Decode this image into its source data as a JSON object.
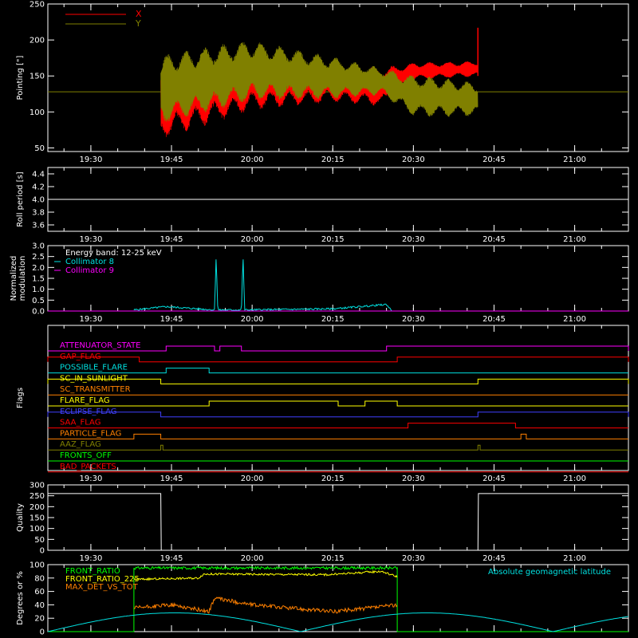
{
  "chart_data": [
    {
      "type": "line",
      "ylabel": "Pointing [\"]",
      "ylim": [
        45,
        250
      ],
      "yticks": [
        50,
        100,
        150,
        200,
        250
      ],
      "xlim": [
        "19:22",
        "21:10"
      ],
      "xticks": [
        "19:30",
        "19:45",
        "20:00",
        "20:15",
        "20:30",
        "20:45",
        "21:00"
      ],
      "legend": "top-left",
      "colors": {
        "X": "#ff0000",
        "Y": "#808000",
        "baseline": "#808000"
      },
      "baseline": 128,
      "series": [
        {
          "name": "X",
          "x": [
            "19:43",
            "19:45",
            "20:00",
            "20:15",
            "20:24",
            "20:30",
            "20:42"
          ],
          "upper": [
            160,
            175,
            190,
            170,
            160,
            168,
            170
          ],
          "lower": [
            65,
            70,
            105,
            115,
            110,
            145,
            150
          ],
          "spike": {
            "x": "20:42",
            "y": 217
          }
        },
        {
          "name": "Y",
          "x": [
            "19:43",
            "19:45",
            "20:00",
            "20:15",
            "20:24",
            "20:30",
            "20:42"
          ],
          "upper": [
            175,
            180,
            198,
            175,
            160,
            150,
            140
          ],
          "lower": [
            85,
            90,
            118,
            120,
            125,
            95,
            95
          ]
        }
      ]
    },
    {
      "type": "line",
      "ylabel": "Roll period [s]",
      "ylim": [
        3.5,
        4.5
      ],
      "yticks": [
        3.6,
        3.8,
        4.0,
        4.2,
        4.4
      ],
      "xticks": [
        "19:30",
        "19:45",
        "20:00",
        "20:15",
        "20:30",
        "20:45",
        "21:00"
      ],
      "series": [
        {
          "name": "",
          "x": [
            "19:22",
            "21:10"
          ],
          "y": [
            4.0,
            4.0
          ]
        }
      ]
    },
    {
      "type": "line",
      "ylabel": "Normalized modulation",
      "ylim": [
        0,
        3.0
      ],
      "yticks": [
        0.0,
        0.5,
        1.0,
        1.5,
        2.0,
        2.5,
        3.0
      ],
      "xticks": [
        "19:30",
        "19:45",
        "20:00",
        "20:15",
        "20:30",
        "20:45",
        "21:00"
      ],
      "legend_title": "Energy band: 12-25 keV",
      "series": [
        {
          "name": "Collimator 8",
          "color": "#00e0e0",
          "x": [
            "19:38",
            "19:44",
            "19:53",
            "19:53.3",
            "19:53.6",
            "19:58",
            "19:58.3",
            "19:58.6",
            "20:15",
            "20:25",
            "20:26"
          ],
          "y": [
            0.05,
            0.2,
            0.05,
            2.55,
            0.05,
            0.05,
            2.55,
            0.05,
            0.1,
            0.3,
            0.0
          ]
        },
        {
          "name": "Collimator 9",
          "color": "#ff00ff",
          "x": [
            "19:22",
            "21:10"
          ],
          "y": [
            0.0,
            0.0
          ]
        }
      ]
    },
    {
      "type": "step",
      "ylabel": "Flags",
      "xticks": [
        "19:30",
        "19:45",
        "20:00",
        "20:15",
        "20:30",
        "20:45",
        "21:00"
      ],
      "flags": [
        {
          "label": "ATTENUATOR_STATE",
          "color": "#ff00ff",
          "high": [
            [
              "19:44",
              "19:53"
            ],
            [
              "19:54",
              "19:58"
            ],
            [
              "20:25",
              "21:10"
            ]
          ]
        },
        {
          "label": "GAP_FLAG",
          "color": "#ff0000",
          "high": [
            [
              "19:22",
              "19:39"
            ],
            [
              "20:27",
              "21:10"
            ]
          ]
        },
        {
          "label": "POSSIBLE_FLARE",
          "color": "#00e0e0",
          "high": [
            [
              "19:44",
              "19:52"
            ]
          ]
        },
        {
          "label": "SC_IN_SUNLIGHT",
          "color": "#ffff00",
          "high": [
            [
              "19:22",
              "19:43"
            ],
            [
              "20:42",
              "21:10"
            ]
          ]
        },
        {
          "label": "SC_TRANSMITTER",
          "color": "#ff8000",
          "high": []
        },
        {
          "label": "FLARE_FLAG",
          "color": "#ffff00",
          "high": [
            [
              "19:52",
              "20:16"
            ],
            [
              "20:21",
              "20:27"
            ]
          ]
        },
        {
          "label": "ECLIPSE_FLAG",
          "color": "#4040ff",
          "high": [
            [
              "19:22",
              "19:43"
            ],
            [
              "20:42",
              "21:10"
            ]
          ]
        },
        {
          "label": "SAA_FLAG",
          "color": "#ff0000",
          "high": [
            [
              "20:29",
              "20:49"
            ]
          ]
        },
        {
          "label": "PARTICLE_FLAG",
          "color": "#ff8000",
          "high": [
            [
              "19:38",
              "19:43"
            ],
            [
              "20:50",
              "20:51"
            ]
          ]
        },
        {
          "label": "AAZ_FLAG",
          "color": "#808000",
          "high": [
            [
              "19:43",
              "19:43.4"
            ],
            [
              "20:42",
              "20:42.4"
            ]
          ]
        },
        {
          "label": "FRONTS_OFF",
          "color": "#00ff00",
          "high": []
        },
        {
          "label": "BAD_PACKETS",
          "color": "#ff0000",
          "high": []
        }
      ]
    },
    {
      "type": "line",
      "ylabel": "Quality",
      "ylim": [
        0,
        300
      ],
      "yticks": [
        0,
        50,
        100,
        150,
        200,
        250,
        300
      ],
      "xticks": [
        "19:30",
        "19:45",
        "20:00",
        "20:15",
        "20:30",
        "20:45",
        "21:00"
      ],
      "series": [
        {
          "name": "",
          "x": [
            "19:22",
            "19:43",
            "19:43.1",
            "20:42",
            "20:42.1",
            "21:10"
          ],
          "y": [
            260,
            260,
            0,
            0,
            260,
            260
          ]
        }
      ]
    },
    {
      "type": "line",
      "ylabel": "Degrees or %",
      "ylim": [
        0,
        100
      ],
      "yticks": [
        0,
        20,
        40,
        60,
        80,
        100
      ],
      "annotation": "Absolute geomagnetic latitude",
      "annotation_color": "#00e0e0",
      "series": [
        {
          "name": "FRONT_RATIO",
          "color": "#00ff00",
          "x": [
            "19:22",
            "19:38",
            "19:38.1",
            "20:00",
            "20:15",
            "20:27",
            "20:27.1",
            "21:10"
          ],
          "y": [
            0,
            0,
            95,
            95,
            95,
            95,
            0,
            0
          ]
        },
        {
          "name": "FRONT_RATIO_225",
          "color": "#ffff00",
          "x": [
            "19:38",
            "19:50",
            "19:51",
            "20:14",
            "20:24",
            "20:27"
          ],
          "y": [
            78,
            80,
            86,
            85,
            90,
            82
          ]
        },
        {
          "name": "MAX_DET_VS_TOT",
          "color": "#ff8000",
          "x": [
            "19:38",
            "19:45",
            "19:52",
            "19:53",
            "20:00",
            "20:15",
            "20:24",
            "20:27"
          ],
          "y": [
            35,
            40,
            30,
            50,
            40,
            30,
            37,
            40
          ]
        },
        {
          "name": "Absolute geomagnetic latitude",
          "color": "#00e0e0",
          "x": [
            "19:22",
            "19:45",
            "20:09",
            "20:32",
            "20:56",
            "21:10"
          ],
          "y": [
            2,
            28,
            0,
            28,
            0,
            18
          ]
        }
      ]
    }
  ]
}
